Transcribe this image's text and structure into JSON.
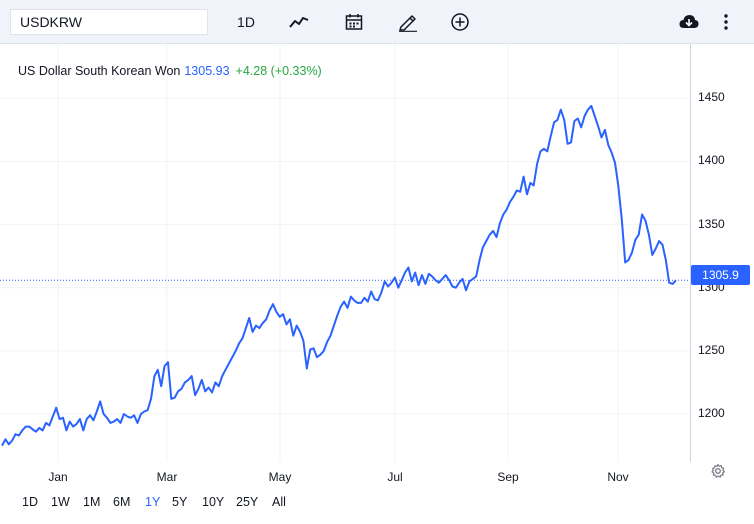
{
  "toolbar": {
    "symbol": "USDKRW",
    "interval": "1D",
    "icons": [
      "line-chart-icon",
      "calendar-icon",
      "draw-pencil-icon",
      "add-indicator-icon",
      "download-icon",
      "more-vertical-icon"
    ]
  },
  "legend": {
    "name": "US Dollar South Korean Won",
    "last": "1305.93",
    "change": "+4.28 (+0.33%)"
  },
  "price_tag": "1305.9",
  "range_buttons": [
    "1D",
    "1W",
    "1M",
    "6M",
    "1Y",
    "5Y",
    "10Y",
    "25Y",
    "All"
  ],
  "active_range": "1Y",
  "colors": {
    "line": "#2962ff",
    "positive": "#26a641",
    "grid": "#f0f3fa"
  },
  "chart_data": {
    "type": "line",
    "title": "",
    "xlabel": "",
    "ylabel": "",
    "x_ticks": [
      "Jan",
      "Mar",
      "May",
      "Jul",
      "Sep",
      "Nov"
    ],
    "y_ticks": [
      1200,
      1250,
      1300,
      1350,
      1400,
      1450
    ],
    "ylim": [
      1162,
      1493
    ],
    "last_value": 1305.9,
    "grid": true,
    "series": [
      {
        "values": [
          1175,
          1180,
          1176,
          1179,
          1184,
          1183,
          1187,
          1190,
          1190,
          1188,
          1186,
          1189,
          1187,
          1193,
          1191,
          1198,
          1205,
          1196,
          1197,
          1187,
          1194,
          1190,
          1192,
          1196,
          1187,
          1196,
          1199,
          1195,
          1202,
          1210,
          1200,
          1197,
          1193,
          1194,
          1196,
          1193,
          1200,
          1198,
          1197,
          1199,
          1193,
          1200,
          1202,
          1203,
          1212,
          1230,
          1235,
          1222,
          1238,
          1241,
          1212,
          1213,
          1218,
          1220,
          1225,
          1227,
          1230,
          1215,
          1220,
          1227,
          1218,
          1221,
          1217,
          1225,
          1222,
          1230,
          1235,
          1240,
          1245,
          1250,
          1256,
          1260,
          1268,
          1276,
          1265,
          1270,
          1268,
          1272,
          1275,
          1282,
          1287,
          1281,
          1277,
          1279,
          1271,
          1275,
          1262,
          1270,
          1265,
          1258,
          1236,
          1251,
          1252,
          1245,
          1247,
          1250,
          1257,
          1262,
          1270,
          1278,
          1285,
          1289,
          1284,
          1293,
          1290,
          1288,
          1288,
          1292,
          1289,
          1297,
          1291,
          1290,
          1296,
          1305,
          1301,
          1304,
          1308,
          1300,
          1306,
          1312,
          1316,
          1305,
          1312,
          1302,
          1310,
          1303,
          1311,
          1309,
          1306,
          1304,
          1307,
          1310,
          1306,
          1301,
          1300,
          1304,
          1307,
          1298,
          1305,
          1307,
          1309,
          1322,
          1332,
          1337,
          1342,
          1345,
          1340,
          1351,
          1358,
          1362,
          1368,
          1372,
          1377,
          1376,
          1388,
          1374,
          1383,
          1381,
          1398,
          1408,
          1410,
          1408,
          1420,
          1431,
          1433,
          1441,
          1433,
          1414,
          1415,
          1432,
          1434,
          1427,
          1436,
          1441,
          1444,
          1436,
          1428,
          1419,
          1425,
          1413,
          1407,
          1399,
          1380,
          1354,
          1320,
          1322,
          1328,
          1338,
          1342,
          1358,
          1353,
          1342,
          1326,
          1331,
          1337,
          1334,
          1322,
          1304,
          1303,
          1305.9
        ]
      }
    ]
  }
}
